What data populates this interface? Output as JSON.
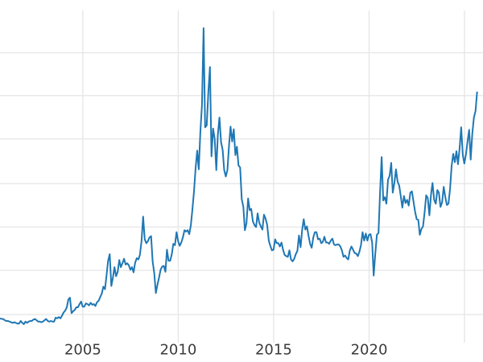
{
  "chart_data": {
    "type": "line",
    "title": "",
    "xlabel": "",
    "ylabel": "",
    "legend": "none",
    "grid": "on",
    "colors": {
      "line": "#1f77b4",
      "grid": "#e7e7e7",
      "tick_label": "#3b3b3b",
      "background": "#ffffff"
    },
    "xlim": [
      2000.66,
      2025.97
    ],
    "ylim": [
      -1.74,
      54.15
    ],
    "x_ticks": [
      {
        "year": 2005,
        "label": "2005"
      },
      {
        "year": 2010,
        "label": "2010"
      },
      {
        "year": 2015,
        "label": "2015"
      },
      {
        "year": 2020,
        "label": "2020"
      },
      {
        "year": 2025,
        "label": ""
      }
    ],
    "y_gridline_values": [
      5.6,
      12.4,
      19.1,
      25.8,
      32.7,
      39.4,
      46.0
    ],
    "series": [
      {
        "name": "price",
        "x_start_year": 2000.66,
        "x_step_years": 0.0833333,
        "values": [
          5.0,
          4.9,
          4.9,
          4.7,
          4.6,
          4.6,
          4.5,
          4.4,
          4.3,
          4.4,
          4.3,
          4.2,
          4.2,
          4.6,
          4.3,
          4.1,
          4.5,
          4.3,
          4.5,
          4.6,
          4.6,
          4.8,
          4.9,
          4.7,
          4.5,
          4.5,
          4.4,
          4.5,
          4.7,
          4.9,
          4.6,
          4.5,
          4.6,
          4.5,
          4.5,
          5.1,
          5.0,
          5.2,
          5.0,
          5.4,
          5.9,
          6.2,
          6.7,
          7.9,
          8.2,
          5.8,
          6.1,
          6.3,
          6.7,
          6.7,
          7.2,
          7.6,
          6.8,
          6.8,
          7.3,
          7.2,
          7.0,
          7.4,
          7.1,
          7.2,
          6.9,
          7.5,
          7.7,
          8.3,
          8.8,
          9.9,
          9.5,
          11.7,
          13.9,
          14.9,
          10.0,
          11.3,
          12.9,
          11.5,
          12.2,
          14.0,
          12.9,
          13.5,
          14.2,
          13.3,
          13.5,
          13.2,
          12.5,
          12.9,
          12.1,
          13.6,
          14.3,
          14.1,
          14.8,
          16.9,
          20.7,
          17.2,
          16.6,
          16.9,
          17.5,
          17.7,
          13.8,
          12.0,
          8.9,
          10.2,
          11.3,
          12.5,
          13.0,
          13.1,
          12.2,
          15.6,
          13.9,
          13.9,
          14.9,
          16.5,
          16.3,
          18.3,
          16.9,
          16.2,
          16.7,
          17.5,
          18.6,
          18.4,
          18.6,
          18.0,
          19.4,
          21.8,
          24.6,
          28.2,
          30.9,
          28.0,
          33.8,
          37.9,
          49.8,
          34.5,
          34.8,
          39.9,
          43.8,
          30.0,
          34.3,
          32.7,
          27.9,
          33.3,
          36.0,
          32.2,
          31.0,
          27.9,
          26.9,
          27.9,
          31.7,
          34.6,
          32.3,
          34.2,
          30.2,
          31.5,
          28.6,
          28.3,
          23.4,
          22.2,
          18.6,
          19.7,
          23.5,
          21.7,
          21.9,
          20.0,
          19.4,
          19.1,
          21.2,
          19.8,
          19.2,
          18.7,
          21.0,
          20.4,
          19.4,
          17.0,
          16.2,
          15.5,
          15.6,
          17.2,
          16.6,
          16.6,
          16.1,
          16.7,
          15.6,
          14.8,
          14.6,
          14.5,
          15.5,
          14.1,
          13.8,
          14.2,
          14.9,
          15.4,
          17.8,
          16.0,
          18.6,
          20.3,
          18.7,
          19.2,
          17.8,
          16.5,
          15.9,
          17.5,
          18.3,
          18.3,
          17.2,
          17.3,
          16.6,
          16.8,
          17.6,
          16.7,
          16.7,
          16.5,
          17.0,
          17.3,
          16.4,
          16.3,
          16.4,
          16.4,
          16.1,
          15.5,
          14.5,
          14.7,
          14.3,
          14.1,
          15.5,
          16.1,
          15.6,
          15.1,
          15.0,
          14.6,
          15.3,
          16.3,
          18.3,
          17.0,
          18.1,
          17.0,
          17.9,
          18.0,
          16.7,
          11.6,
          15.0,
          17.9,
          18.2,
          24.4,
          29.9,
          23.2,
          23.7,
          22.7,
          26.4,
          27.0,
          29.0,
          24.4,
          25.9,
          28.0,
          26.1,
          25.5,
          23.9,
          22.1,
          23.9,
          22.8,
          23.3,
          22.4,
          24.4,
          24.6,
          23.1,
          21.5,
          20.3,
          20.2,
          17.9,
          18.8,
          19.2,
          21.4,
          24.0,
          23.6,
          20.9,
          24.1,
          25.9,
          23.3,
          22.7,
          24.8,
          24.4,
          22.2,
          22.9,
          25.3,
          23.8,
          22.5,
          22.7,
          25.0,
          28.5,
          30.4,
          29.1,
          30.8,
          28.8,
          31.2,
          34.5,
          30.2,
          28.9,
          30.3,
          32.3,
          34.1,
          29.5,
          33.5,
          36.0,
          37.0,
          40.0
        ]
      }
    ]
  }
}
